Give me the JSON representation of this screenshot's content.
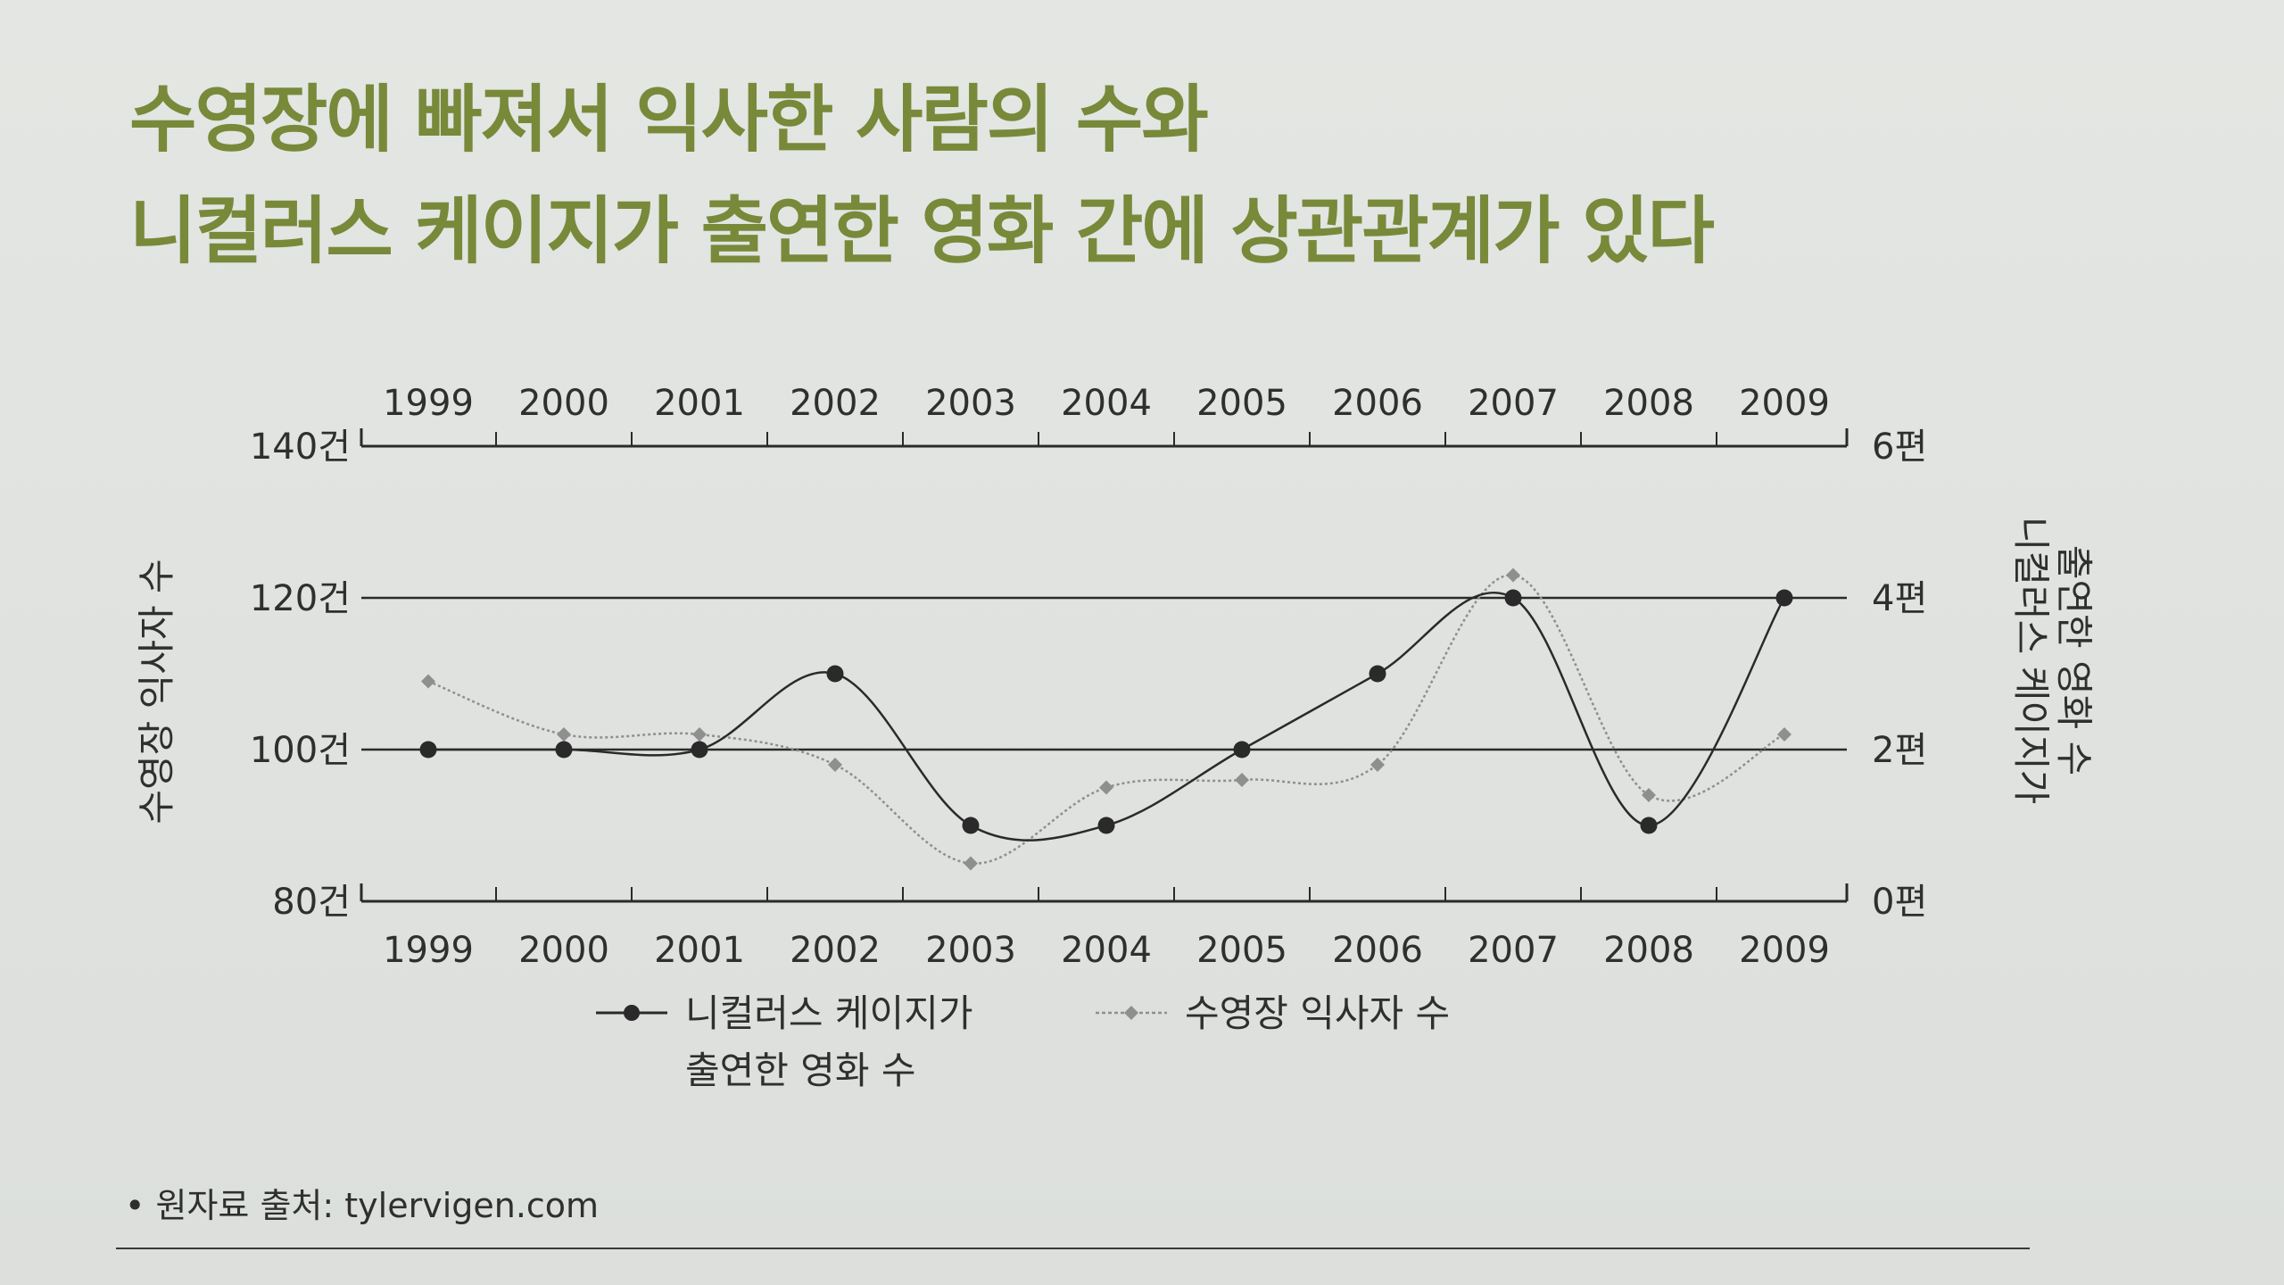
{
  "title_lines": [
    "수영장에 빠져서 익사한 사람의 수와",
    "니컬러스 케이지가 출연한 영화 간에 상관관계가 있다"
  ],
  "source_note": "• 원자료 출처: tylervigen.com",
  "colors": {
    "title": "#78893a",
    "cage_series": "#2a2a2a",
    "drowning_series": "#8f8f8f",
    "axis": "#2a2a2a"
  },
  "chart_data": {
    "type": "line",
    "x": [
      "1999",
      "2000",
      "2001",
      "2002",
      "2003",
      "2004",
      "2005",
      "2006",
      "2007",
      "2008",
      "2009"
    ],
    "left_axis": {
      "label": "수영장 익사자 수",
      "range": [
        80,
        140
      ],
      "ticks": [
        {
          "value": 80,
          "label": "80건"
        },
        {
          "value": 100,
          "label": "100건"
        },
        {
          "value": 120,
          "label": "120건"
        },
        {
          "value": 140,
          "label": "140건"
        }
      ]
    },
    "right_axis": {
      "label_lines": [
        "니컬러스 케이지가",
        "출연한 영화 수"
      ],
      "range": [
        0,
        6
      ],
      "ticks": [
        {
          "value": 0,
          "label": "0편"
        },
        {
          "value": 2,
          "label": "2편"
        },
        {
          "value": 4,
          "label": "4편"
        },
        {
          "value": 6,
          "label": "6편"
        }
      ]
    },
    "gridlines": [
      100,
      120
    ],
    "series": [
      {
        "name_lines": [
          "니컬러스 케이지가",
          "출연한 영화 수"
        ],
        "axis": "right",
        "marker": "circle",
        "values": [
          2,
          2,
          2,
          3,
          1,
          1,
          2,
          3,
          4,
          1,
          4
        ]
      },
      {
        "name_lines": [
          "수영장 익사자 수"
        ],
        "axis": "left",
        "marker": "diamond",
        "values": [
          109,
          102,
          102,
          98,
          85,
          95,
          96,
          98,
          123,
          94,
          102
        ]
      }
    ],
    "legend_position": "bottom"
  }
}
